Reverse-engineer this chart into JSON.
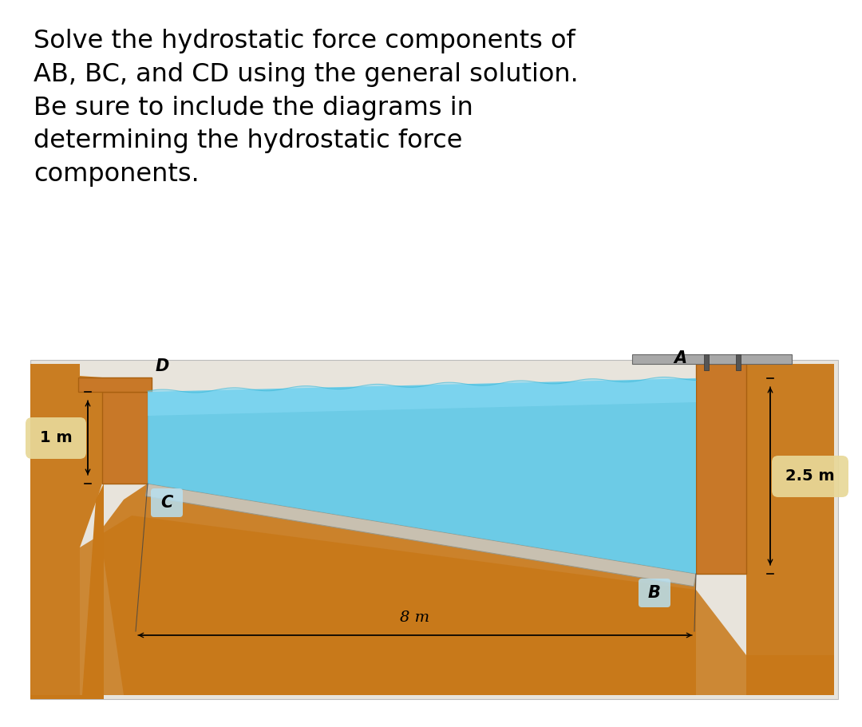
{
  "title_text": "Solve the hydrostatic force components of\nAB, BC, and CD using the general solution.\nBe sure to include the diagrams in\ndetermining the hydrostatic force\ncomponents.",
  "title_fontsize": 23,
  "bg_color": "#ffffff",
  "diagram_bg": "#e8e4dc",
  "water_color": "#5bc8e8",
  "water_top_color": "#88daf5",
  "wall_color": "#c87828",
  "wall_shade": "#a86010",
  "soil_color": "#c87818",
  "floor_color": "#c8c0b0",
  "floor_edge": "#9a9888",
  "label_fontsize": 14,
  "dim_fontsize": 13,
  "pill_color": "#e8d898",
  "pill_blue": "#b8e0f0",
  "gray_plate": "#a8a8a8",
  "dim_1m": "1 m",
  "dim_2p5m": "2.5 m",
  "dim_8m": "8 m"
}
